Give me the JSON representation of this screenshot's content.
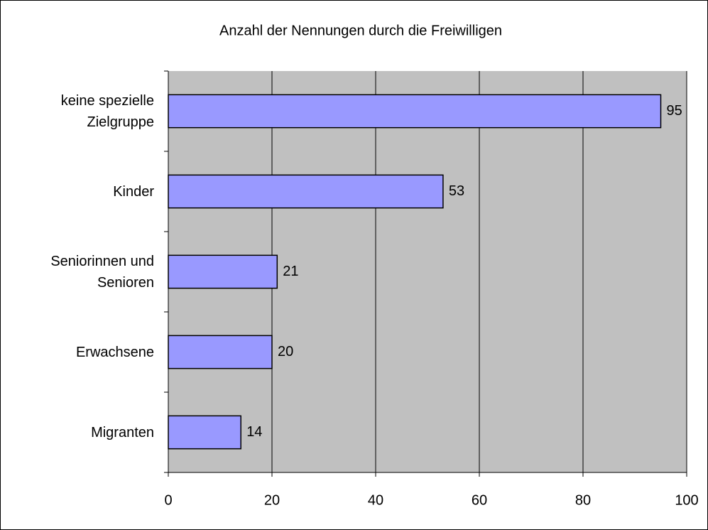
{
  "chart_data": {
    "type": "bar",
    "orientation": "horizontal",
    "title": "Anzahl der Nennungen durch die Freiwilligen",
    "categories": [
      "keine spezielle Zielgruppe",
      "Kinder",
      "Seniorinnen und Senioren",
      "Erwachsene",
      "Migranten"
    ],
    "values": [
      95,
      53,
      21,
      20,
      14
    ],
    "color": "#9999ff",
    "xlim": [
      0,
      100
    ],
    "xticks": [
      0,
      20,
      40,
      60,
      80,
      100
    ],
    "grid": true
  }
}
